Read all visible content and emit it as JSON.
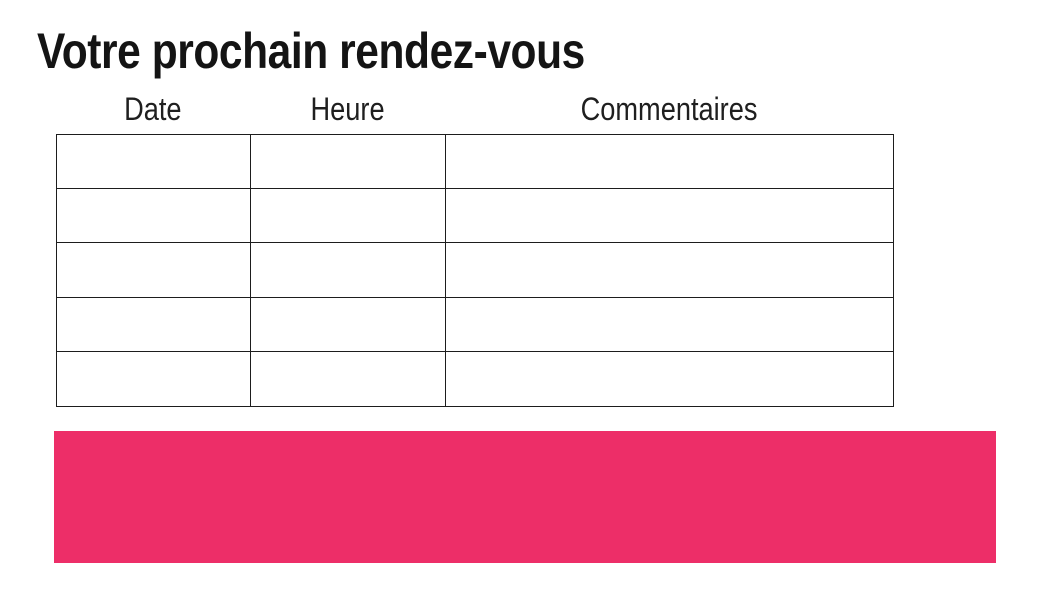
{
  "page": {
    "title": "Votre prochain rendez-vous"
  },
  "table": {
    "columns": [
      {
        "id": "date",
        "label": "Date"
      },
      {
        "id": "heure",
        "label": "Heure"
      },
      {
        "id": "commentaires",
        "label": "Commentaires"
      }
    ],
    "rows": [
      [
        "",
        "",
        ""
      ],
      [
        "",
        "",
        ""
      ],
      [
        "",
        "",
        ""
      ],
      [
        "",
        "",
        ""
      ],
      [
        "",
        "",
        ""
      ]
    ]
  },
  "highlight_bar": {
    "text": ""
  },
  "colors": {
    "accent_pink": "#ed2e68",
    "table_border": "#1d1d1d",
    "text": "#141414",
    "background": "#ffffff"
  }
}
